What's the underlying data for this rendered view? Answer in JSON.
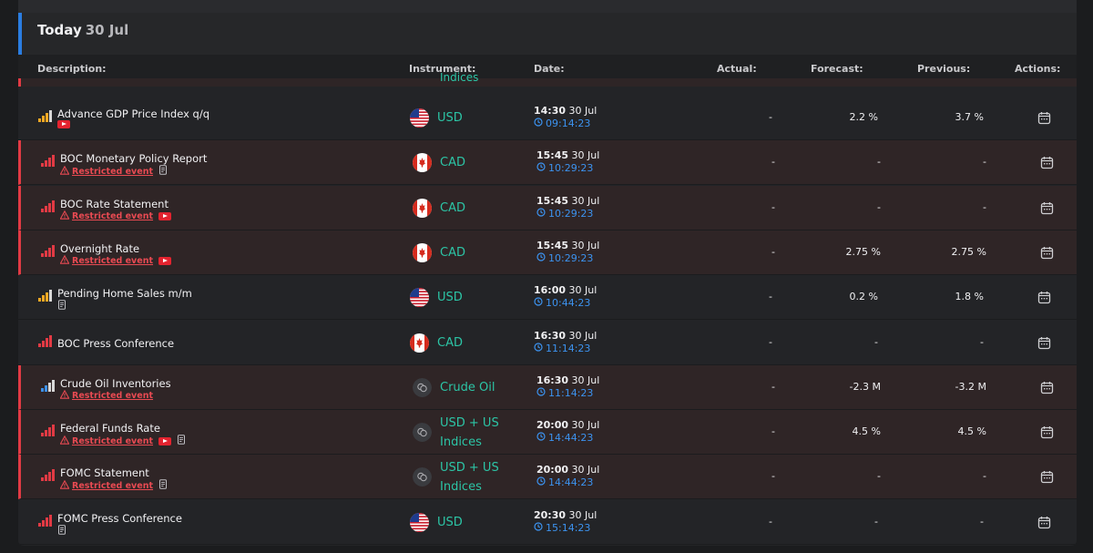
{
  "day": {
    "title": "Today",
    "date": "30 Jul"
  },
  "columns": {
    "description": "Description:",
    "instrument": "Instrument:",
    "date": "Date:",
    "actual": "Actual:",
    "forecast": "Forecast:",
    "previous": "Previous:",
    "actions": "Actions:"
  },
  "partial_row": {
    "instrument": "Indices"
  },
  "restricted_label": "Restricted event",
  "rows": [
    {
      "name": "Advance GDP Price Index q/q",
      "impact": "medium",
      "restricted": false,
      "youtube": true,
      "doc": false,
      "flag": "us",
      "instrument": [
        "USD"
      ],
      "time": "14:30",
      "date": "30 Jul",
      "countdown": "09:14:23",
      "actual": "-",
      "forecast": "2.2 %",
      "previous": "3.7 %"
    },
    {
      "name": "BOC Monetary Policy Report",
      "impact": "high",
      "restricted": true,
      "youtube": false,
      "doc": true,
      "flag": "ca",
      "instrument": [
        "CAD"
      ],
      "time": "15:45",
      "date": "30 Jul",
      "countdown": "10:29:23",
      "actual": "-",
      "forecast": "-",
      "previous": "-"
    },
    {
      "name": "BOC Rate Statement",
      "impact": "high",
      "restricted": true,
      "youtube": true,
      "doc": false,
      "flag": "ca",
      "instrument": [
        "CAD"
      ],
      "time": "15:45",
      "date": "30 Jul",
      "countdown": "10:29:23",
      "actual": "-",
      "forecast": "-",
      "previous": "-"
    },
    {
      "name": "Overnight Rate",
      "impact": "high",
      "restricted": true,
      "youtube": true,
      "doc": false,
      "flag": "ca",
      "instrument": [
        "CAD"
      ],
      "time": "15:45",
      "date": "30 Jul",
      "countdown": "10:29:23",
      "actual": "-",
      "forecast": "2.75 %",
      "previous": "2.75 %"
    },
    {
      "name": "Pending Home Sales m/m",
      "impact": "medium",
      "restricted": false,
      "youtube": false,
      "doc": true,
      "flag": "us",
      "instrument": [
        "USD"
      ],
      "time": "16:00",
      "date": "30 Jul",
      "countdown": "10:44:23",
      "actual": "-",
      "forecast": "0.2 %",
      "previous": "1.8 %"
    },
    {
      "name": "BOC Press Conference",
      "impact": "high",
      "restricted": false,
      "youtube": false,
      "doc": false,
      "flag": "ca",
      "instrument": [
        "CAD"
      ],
      "time": "16:30",
      "date": "30 Jul",
      "countdown": "11:14:23",
      "actual": "-",
      "forecast": "-",
      "previous": "-"
    },
    {
      "name": "Crude Oil Inventories",
      "impact": "low",
      "restricted": true,
      "youtube": false,
      "doc": false,
      "flag": "coin",
      "instrument": [
        "Crude Oil"
      ],
      "time": "16:30",
      "date": "30 Jul",
      "countdown": "11:14:23",
      "actual": "-",
      "forecast": "-2.3 M",
      "previous": "-3.2 M"
    },
    {
      "name": "Federal Funds Rate",
      "impact": "high",
      "restricted": true,
      "youtube": true,
      "doc": true,
      "flag": "coin",
      "instrument": [
        "USD + US",
        "Indices"
      ],
      "time": "20:00",
      "date": "30 Jul",
      "countdown": "14:44:23",
      "actual": "-",
      "forecast": "4.5 %",
      "previous": "4.5 %"
    },
    {
      "name": "FOMC Statement",
      "impact": "high",
      "restricted": true,
      "youtube": false,
      "doc": true,
      "flag": "coin",
      "instrument": [
        "USD + US",
        "Indices"
      ],
      "time": "20:00",
      "date": "30 Jul",
      "countdown": "14:44:23",
      "actual": "-",
      "forecast": "-",
      "previous": "-"
    },
    {
      "name": "FOMC Press Conference",
      "impact": "high",
      "restricted": false,
      "youtube": false,
      "doc": true,
      "flag": "us",
      "instrument": [
        "USD"
      ],
      "time": "20:30",
      "date": "30 Jul",
      "countdown": "15:14:23",
      "actual": "-",
      "forecast": "-",
      "previous": "-"
    }
  ]
}
